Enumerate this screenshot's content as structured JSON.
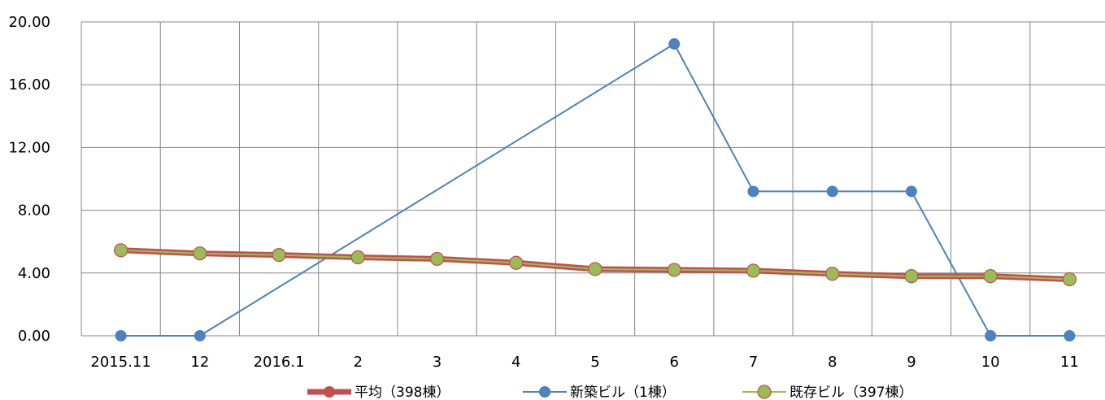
{
  "chart_data": {
    "type": "line",
    "title": "",
    "xlabel": "",
    "ylabel": "",
    "categories": [
      "2015.11",
      "12",
      "2016.1",
      "2",
      "3",
      "4",
      "5",
      "6",
      "7",
      "8",
      "9",
      "10",
      "11"
    ],
    "ylim": [
      0,
      20
    ],
    "yticks": [
      "0.00",
      "4.00",
      "8.00",
      "12.00",
      "16.00",
      "20.00"
    ],
    "ytick_values": [
      0,
      4,
      8,
      12,
      16,
      20
    ],
    "grid": true,
    "legend_position": "bottom",
    "series": [
      {
        "name": "平均（398棟）",
        "color": "#c0504d",
        "values": [
          5.45,
          5.25,
          5.15,
          5.0,
          4.9,
          4.65,
          4.25,
          4.2,
          4.15,
          3.95,
          3.8,
          3.8,
          3.6
        ]
      },
      {
        "name": "新築ビル（1棟）",
        "color": "#4f81bd",
        "values": [
          0,
          0,
          null,
          null,
          null,
          null,
          null,
          18.6,
          9.2,
          9.2,
          9.2,
          0,
          0
        ]
      },
      {
        "name": "既存ビル（397棟）",
        "color": "#9bbb59",
        "values": [
          5.45,
          5.25,
          5.15,
          5.0,
          4.9,
          4.65,
          4.25,
          4.2,
          4.15,
          3.95,
          3.8,
          3.8,
          3.6
        ]
      }
    ]
  }
}
